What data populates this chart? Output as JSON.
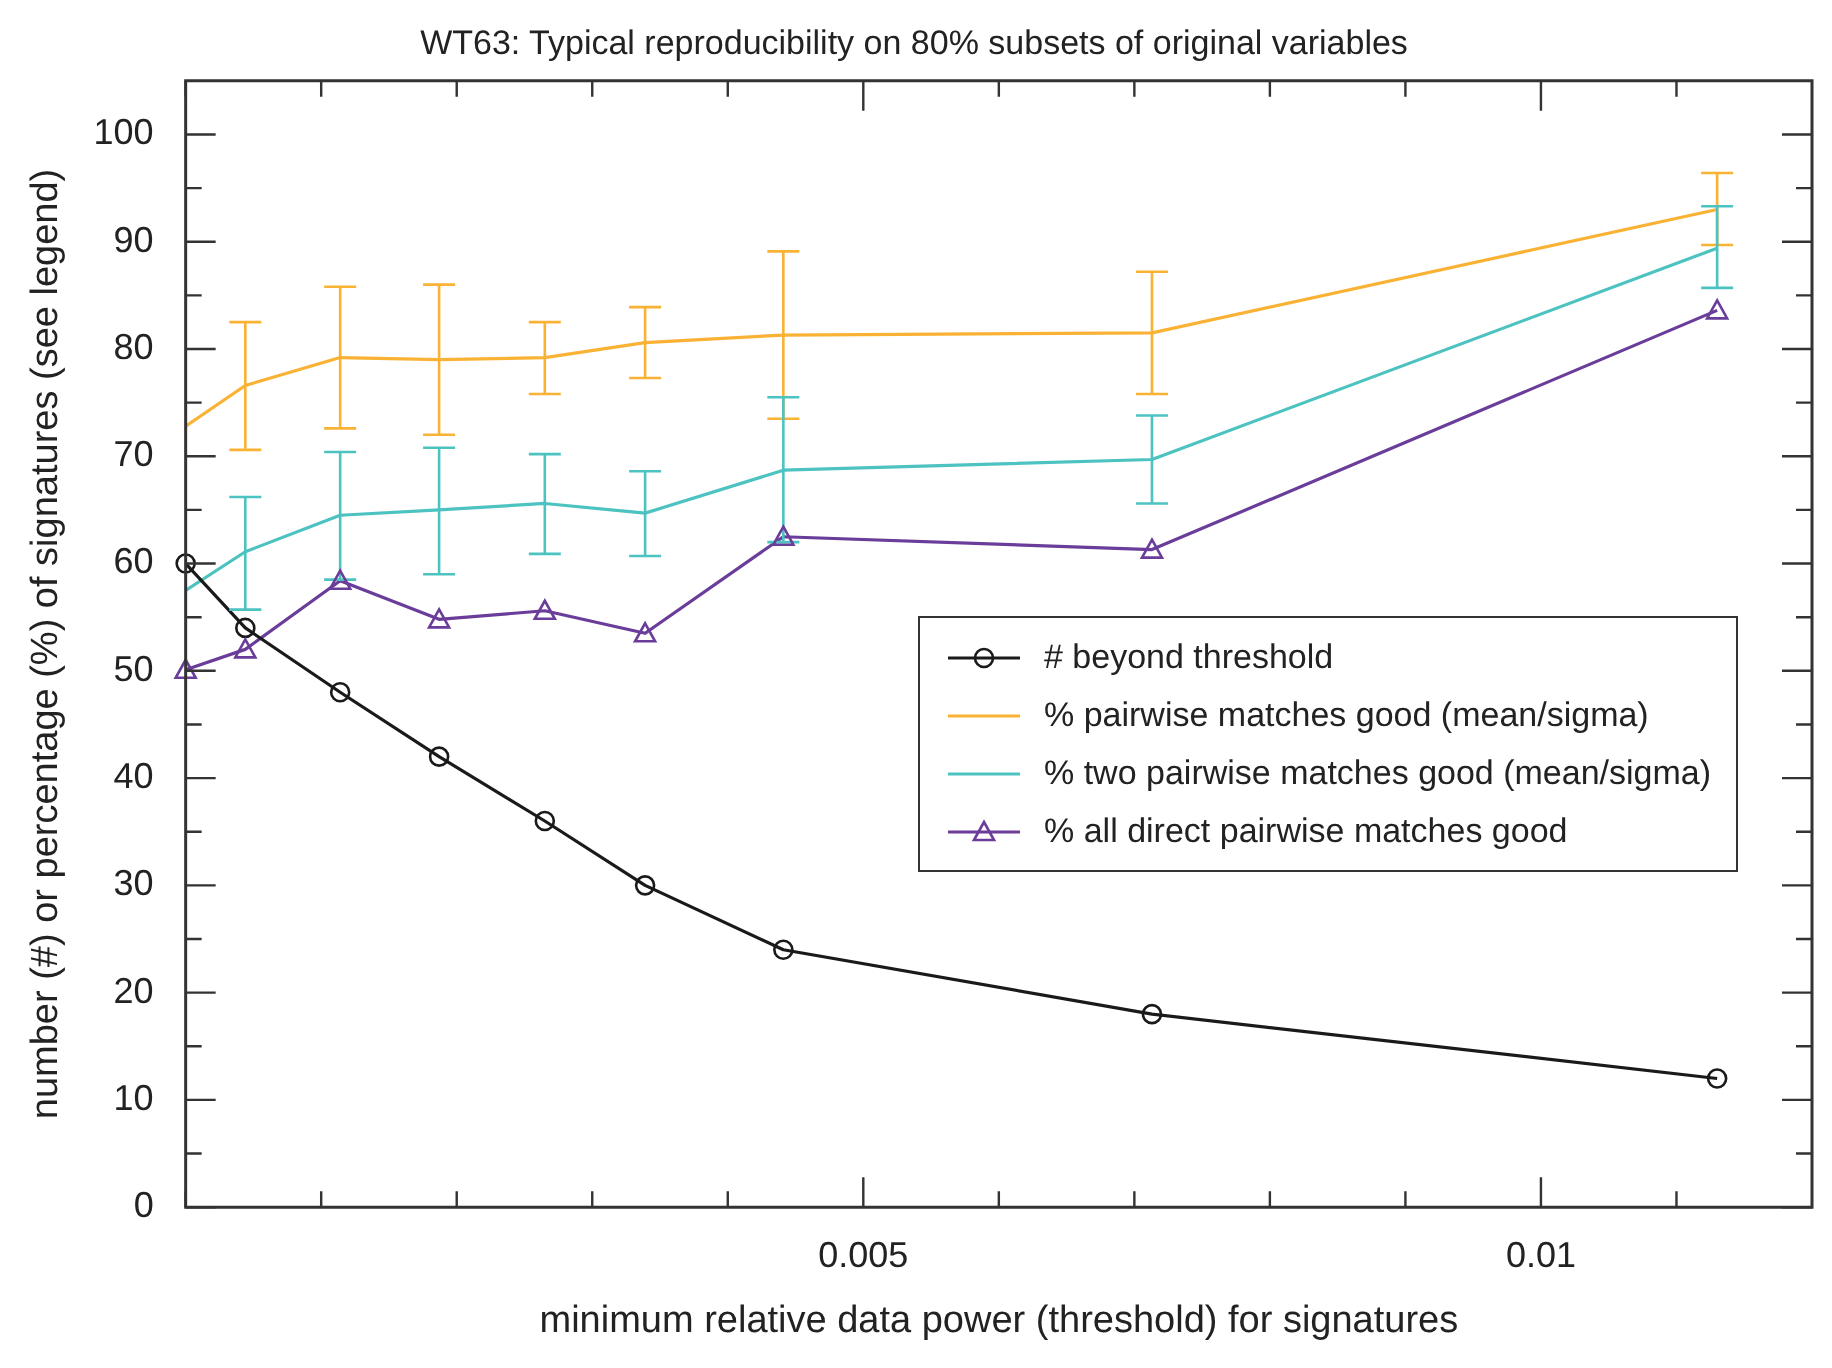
{
  "chart_data": {
    "type": "line",
    "title": "WT63: Typical reproducibility on 80% subsets of original variables",
    "xlabel": "minimum relative data power (threshold) for signatures",
    "ylabel": "number (#) or percentage (%) of signatures (see legend)",
    "x": [
      0,
      0.00044,
      0.00114,
      0.00187,
      0.00265,
      0.00339,
      0.00441,
      0.00713,
      0.0113
    ],
    "series": [
      {
        "name": "# beyond threshold",
        "color": "#1a1a1a",
        "marker": "circle",
        "values": [
          60,
          54,
          48,
          42,
          36,
          30,
          24,
          18,
          12
        ]
      },
      {
        "name": "% pairwise matches good (mean/sigma)",
        "color": "#f9b234",
        "marker": "none",
        "values": [
          72.8,
          76.6,
          79.2,
          79.0,
          79.2,
          80.6,
          81.3,
          81.5,
          93.0
        ],
        "errors": [
          null,
          [
            70.6,
            82.5
          ],
          [
            72.6,
            85.8
          ],
          [
            72.0,
            86.0
          ],
          [
            75.8,
            82.5
          ],
          [
            77.3,
            83.9
          ],
          [
            73.5,
            89.1
          ],
          [
            75.8,
            87.2
          ],
          [
            89.7,
            96.4
          ]
        ]
      },
      {
        "name": "% two pairwise matches good (mean/sigma)",
        "color": "#4cc3c0",
        "marker": "none",
        "values": [
          57.5,
          61.1,
          64.5,
          65.0,
          65.6,
          64.7,
          68.7,
          69.7,
          89.4
        ],
        "errors": [
          null,
          [
            55.7,
            66.2
          ],
          [
            58.5,
            70.4
          ],
          [
            59.0,
            70.8
          ],
          [
            60.9,
            70.2
          ],
          [
            60.7,
            68.6
          ],
          [
            62.0,
            75.5
          ],
          [
            65.6,
            73.8
          ],
          [
            85.7,
            93.3
          ]
        ]
      },
      {
        "name": "% all direct pairwise matches good",
        "color": "#6a3d9a",
        "marker": "triangle",
        "values": [
          50.1,
          52.0,
          58.4,
          54.8,
          55.6,
          53.5,
          62.5,
          61.3,
          83.6
        ]
      }
    ],
    "xlim": [
      0,
      0.012
    ],
    "xticks": [
      {
        "value": 0,
        "label": null
      },
      {
        "value": 0.001,
        "label": null
      },
      {
        "value": 0.002,
        "label": null
      },
      {
        "value": 0.003,
        "label": null
      },
      {
        "value": 0.004,
        "label": null
      },
      0.005,
      {
        "value": 0.006,
        "label": null
      },
      {
        "value": 0.007,
        "label": null
      },
      {
        "value": 0.008,
        "label": null
      },
      {
        "value": 0.009,
        "label": null
      },
      0.01,
      {
        "value": 0.011,
        "label": null
      }
    ],
    "ylim": [
      0,
      105
    ],
    "yticks": [
      0,
      {
        "value": 5,
        "label": null
      },
      10,
      {
        "value": 15,
        "label": null
      },
      20,
      {
        "value": 25,
        "label": null
      },
      30,
      {
        "value": 35,
        "label": null
      },
      40,
      {
        "value": 45,
        "label": null
      },
      50,
      {
        "value": 55,
        "label": null
      },
      60,
      {
        "value": 65,
        "label": null
      },
      70,
      {
        "value": 75,
        "label": null
      },
      80,
      {
        "value": 85,
        "label": null
      },
      90,
      {
        "value": 95,
        "label": null
      },
      100
    ],
    "legend": "right"
  }
}
